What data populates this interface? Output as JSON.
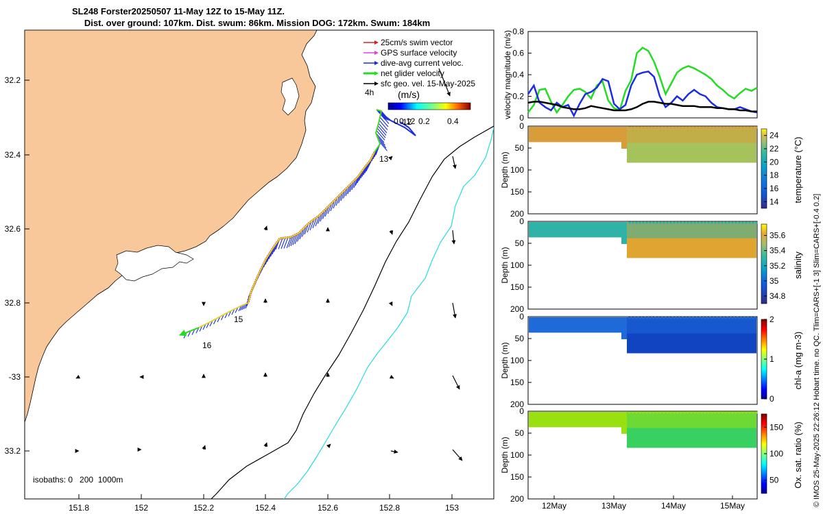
{
  "title": {
    "line1": "SL248 Forster20250507 11-May 12Z to 15-May 11Z.",
    "line2": "Dist. over ground: 107km. Dist. swum: 86km. Mission DOG: 172km. Swum: 184km"
  },
  "map": {
    "lon_ticks": [
      "151.8",
      "152",
      "152.2",
      "152.4",
      "152.6",
      "152.8",
      "153"
    ],
    "lat_ticks": [
      "32.2",
      "32.4",
      "32.6",
      "32.8",
      "-33",
      "33.2"
    ],
    "lon_range": [
      151.63,
      153.13
    ],
    "lat_range": [
      -32.06,
      -33.32
    ],
    "legend": [
      {
        "label": "25cm/s swim vector",
        "color": "#d62020"
      },
      {
        "label": "GPS surface velocity",
        "color": "#e040e0"
      },
      {
        "label": "dive-avg current veloc.",
        "color": "#1a2ee0"
      },
      {
        "label": "net glider velocity",
        "color": "#22dd22"
      },
      {
        "label": "sfc geo. vel. 15-May-2025",
        "color": "#000000"
      }
    ],
    "scale_label": "4h",
    "colorbar_unit": "(m/s)",
    "colorbar_ticks": [
      "0.12",
      "0.2",
      "0.4"
    ],
    "colorbar_zero": "0",
    "day_labels": [
      "12",
      "13",
      "15",
      "16"
    ],
    "isobaths_label": "isobaths: 0   200  1000m",
    "colors": {
      "land": "#f8c79a",
      "isobath200": "#000000",
      "isobath1000": "#22dddd"
    }
  },
  "chart_data": [
    {
      "type": "line",
      "title": "",
      "ylabel": "velocity magnitude (m/s)",
      "ylim": [
        0,
        0.8
      ],
      "yticks": [
        "0",
        "0.2",
        "0.4",
        "0.6",
        "0.8"
      ],
      "xlabel": "",
      "x": [
        0,
        0.1,
        0.2,
        0.3,
        0.4,
        0.5,
        0.6,
        0.7,
        0.8,
        0.9,
        1.0,
        1.1,
        1.2,
        1.3,
        1.4,
        1.5,
        1.6,
        1.7,
        1.8,
        1.9,
        2.0,
        2.1,
        2.2,
        2.3,
        2.4,
        2.5,
        2.6,
        2.7,
        2.8,
        2.9,
        3.0,
        3.1,
        3.2,
        3.3,
        3.4,
        3.5,
        3.6,
        3.7,
        3.8,
        3.9,
        4.0
      ],
      "series": [
        {
          "name": "net glider velocity",
          "color": "#22dd22",
          "values": [
            0.05,
            0.12,
            0.26,
            0.27,
            0.15,
            0.05,
            0.12,
            0.2,
            0.26,
            0.27,
            0.24,
            0.18,
            0.3,
            0.34,
            0.16,
            0.09,
            0.07,
            0.25,
            0.35,
            0.6,
            0.65,
            0.62,
            0.52,
            0.38,
            0.22,
            0.32,
            0.42,
            0.46,
            0.48,
            0.46,
            0.43,
            0.4,
            0.36,
            0.3,
            0.26,
            0.21,
            0.18,
            0.23,
            0.27,
            0.25,
            0.28
          ]
        },
        {
          "name": "dive-avg current veloc.",
          "color": "#1a2ee0",
          "values": [
            0.22,
            0.3,
            0.14,
            0.1,
            0.07,
            0.14,
            0.1,
            0.12,
            0.02,
            0.13,
            0.22,
            0.24,
            0.28,
            0.36,
            0.34,
            0.13,
            0.08,
            0.12,
            0.3,
            0.4,
            0.42,
            0.43,
            0.38,
            0.2,
            0.1,
            0.14,
            0.2,
            0.16,
            0.22,
            0.26,
            0.22,
            0.2,
            0.14,
            0.1,
            0.09,
            0.08,
            0.08,
            0.1,
            0.08,
            0.06,
            0.05
          ]
        },
        {
          "name": "sfc geo. vel.",
          "color": "#000000",
          "values": [
            0.14,
            0.15,
            0.15,
            0.14,
            0.13,
            0.12,
            0.1,
            0.09,
            0.08,
            0.08,
            0.09,
            0.11,
            0.1,
            0.09,
            0.08,
            0.07,
            0.07,
            0.07,
            0.08,
            0.1,
            0.13,
            0.15,
            0.15,
            0.14,
            0.13,
            0.13,
            0.12,
            0.11,
            0.11,
            0.11,
            0.1,
            0.1,
            0.1,
            0.09,
            0.09,
            0.08,
            0.08,
            0.07,
            0.07,
            0.06,
            0.06
          ]
        }
      ]
    },
    {
      "type": "heatmap",
      "ylabel": "Depth (m)",
      "yticks": [
        "0",
        "50",
        "100",
        "150",
        "200"
      ],
      "ylim": [
        200,
        0
      ],
      "colorbar_label": "temperature (°C)",
      "colorbar_ticks": [
        "24",
        "22",
        "20",
        "18",
        "16",
        "14"
      ],
      "clim": [
        13,
        25
      ],
      "colormap": "parula"
    },
    {
      "type": "heatmap",
      "ylabel": "Depth (m)",
      "yticks": [
        "0",
        "50",
        "100",
        "150",
        "200"
      ],
      "ylim": [
        200,
        0
      ],
      "colorbar_label": "salinity",
      "colorbar_ticks": [
        "35.6",
        "35.4",
        "35.2",
        "35",
        "34.8"
      ],
      "clim": [
        34.7,
        35.75
      ],
      "colormap": "parula"
    },
    {
      "type": "heatmap",
      "ylabel": "Depth (m)",
      "yticks": [
        "0",
        "50",
        "100",
        "150",
        "200"
      ],
      "ylim": [
        200,
        0
      ],
      "colorbar_label": "chl-a (mg m-3)",
      "colorbar_ticks": [
        "2",
        "1",
        "0"
      ],
      "clim": [
        0,
        2
      ],
      "colormap": "jet"
    },
    {
      "type": "heatmap",
      "ylabel": "Depth (m)",
      "yticks": [
        "0",
        "50",
        "100",
        "150",
        "200"
      ],
      "ylim": [
        200,
        0
      ],
      "colorbar_label": "Ox. sat. ratio (%)",
      "colorbar_ticks": [
        "150",
        "100",
        "50"
      ],
      "clim": [
        25,
        175
      ],
      "colormap": "jet",
      "xticks": [
        "12May",
        "13May",
        "14May",
        "15May"
      ]
    }
  ],
  "credit": "© IMOS 25-May-2025 22:26:12 Hobart time. no QC. Tlim=CARS+[-1 3] Slim=CARS+[-0.4 0.2]"
}
